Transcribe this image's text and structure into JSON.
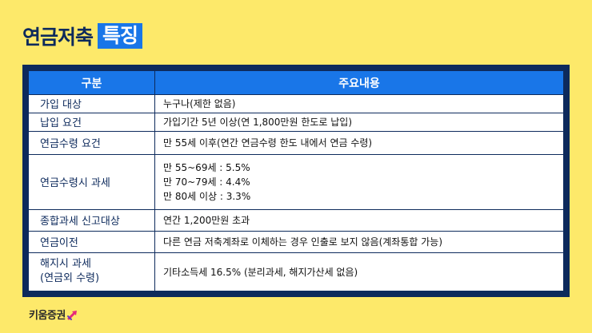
{
  "title": {
    "main": "연금저축",
    "highlight": "특징"
  },
  "table": {
    "headers": [
      "구분",
      "주요내용"
    ],
    "rows": [
      {
        "category": [
          "가입 대상"
        ],
        "content": [
          "누구나(제한 없음)"
        ]
      },
      {
        "category": [
          "납입 요건"
        ],
        "content": [
          "가입기간 5년 이상(연 1,800만원 한도로 납입)"
        ]
      },
      {
        "category": [
          "연금수령 요건"
        ],
        "content": [
          "만 55세 이후(연간 연금수령 한도 내에서 연금 수령)"
        ]
      },
      {
        "category": [
          "연금수령시 과세"
        ],
        "content": [
          "만 55~69세 : 5.5%",
          "만 70~79세 : 4.4%",
          "만 80세 이상 : 3.3%"
        ]
      },
      {
        "category": [
          "종합과세 신고대상"
        ],
        "content": [
          "연간 1,200만원 초과"
        ]
      },
      {
        "category": [
          "연금이전"
        ],
        "content": [
          "다른 연금 저축계좌로 이체하는 경우 인출로 보지 않음(계좌통합 가능)"
        ]
      },
      {
        "category": [
          "해지시 과세",
          "(연금외 수령)"
        ],
        "content": [
          "기타소득세 16.5% (분리과세, 해지가산세 없음)"
        ]
      }
    ]
  },
  "footer": {
    "brand": "키움증권",
    "brand_icon": "kiwoom-arrow-logo"
  },
  "colors": {
    "background": "#fde96a",
    "navy": "#0d2a5c",
    "accent_blue": "#1976e8",
    "brand_pink": "#e6287a"
  }
}
